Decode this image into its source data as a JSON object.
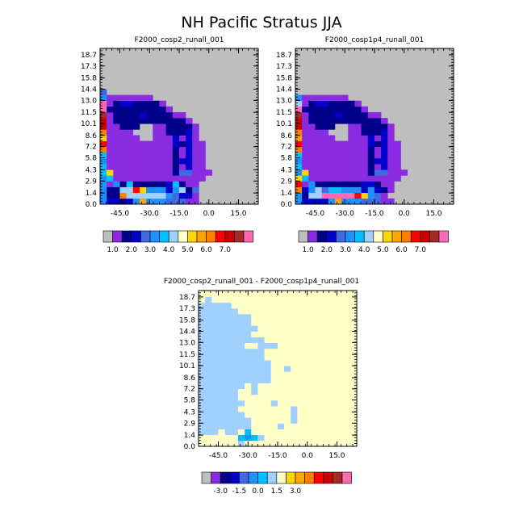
{
  "title": "NH Pacific Stratus JJA",
  "colors": {
    "background": "#ffffff",
    "missing": "#bebebe",
    "frame": "#000000",
    "palette": [
      "#bebebe",
      "#8a2be2",
      "#00008b",
      "#0000cd",
      "#4169e1",
      "#1e90ff",
      "#00bfff",
      "#a0d0ff",
      "#ffffc8",
      "#ffd700",
      "#ffa500",
      "#ff7f00",
      "#ff0000",
      "#cd0000",
      "#a52a2a",
      "#ff69b4"
    ]
  },
  "y_tick_labels": [
    "0.0",
    "1.4",
    "2.9",
    "4.3",
    "5.8",
    "7.2",
    "8.6",
    "10.1",
    "11.5",
    "13.0",
    "14.4",
    "15.8",
    "17.3",
    "18.7"
  ],
  "x_tick_labels": [
    "-45.0",
    "-30.0",
    "-15.0",
    "0.0",
    "15.0"
  ],
  "colorbar_top": {
    "labels": [
      "1.0",
      "2.0",
      "3.0",
      "4.0",
      "5.0",
      "6.0",
      "7.0"
    ]
  },
  "colorbar_diff": {
    "labels": [
      "-3.0",
      "-1.5",
      "0.0",
      "1.5",
      "3.0"
    ]
  },
  "chart_data": [
    {
      "type": "heatmap",
      "title": "F2000_cosp2_runall_001",
      "x_ticks": [
        -45,
        -30,
        -15,
        0,
        15
      ],
      "y_ticks": [
        0.0,
        1.4,
        2.9,
        4.3,
        5.8,
        7.2,
        8.6,
        10.1,
        11.5,
        13.0,
        14.4,
        15.8,
        17.3,
        18.7
      ],
      "xlim": [
        -55,
        25
      ],
      "ylim": [
        0,
        19.5
      ],
      "grid": {
        "x0": -55,
        "dx": 3.33,
        "y0": 0,
        "dy": 0.72
      },
      "rows": [
        "FDDCDFKFFFEEEBBAAAAAAAAA",
        "FCCLHHHHHHFEDDBAAAAAAAAA",
        "FCCHHMJFFFDFHCEAAAAAAAAA",
        "FBFCGCCCCCDGCBBAAAAAAAAA",
        "FGBBBBBBBBBBBBBBAAAAAAAA",
        "GJBBBBBBBBBCEEBBBAAAAAAA",
        "GBBBBBBBBBBCBDBBAAAAAAAA",
        "FBBBBBBBBBBCDDBBAAAAAAAA",
        "GBBBBBBBBBBCBDBBAAAAAAAA",
        "LBBBBBBBBBBCBDBBAAAAAAAA",
        "MBBBBBBBBBBDCDBBAAAAAAAA",
        "JBBBBBAABBBDBDBAAAAAAAAA",
        "LBBBBAAABBCCCDBAAAAAAAAA",
        "NBBCCCAABBCCCCBAAAAAAAAA",
        "NBCCCCCCCCCCCBAAAAAAAAAA",
        "OBCCCCDCCCCBBAAAAAAAAAAA",
        "PCCCCCCCCCBAAAAAAAAAAAAA",
        "PBCDDCCCCBAAAAAAAAAAAAAA",
        "FBBBBBBBAAAAAAAAAAAAAAAA",
        "EAAAAAAAAAAAAAAAAAAAAAAA",
        "AAAAAAAAAAAAAAAAAAAAAAAA",
        "AAAAAAAAAAAAAAAAAAAAAAAA",
        "AAAAAAAAAAAAAAAAAAAAAAAA",
        "AAAAAAAAAAAAAAAAAAAAAAAA",
        "AAAAAAAAAAAAAAAAAAAAAAAA",
        "AAAAAAAAAAAAAAAAAAAAAAAA",
        "AAAAAAAAAAAAAAAAAAAAAAAA"
      ]
    },
    {
      "type": "heatmap",
      "title": "F2000_cosp1p4_runall_001",
      "x_ticks": [
        -45,
        -30,
        -15,
        0,
        15
      ],
      "y_ticks": [
        0.0,
        1.4,
        2.9,
        4.3,
        5.8,
        7.2,
        8.6,
        10.1,
        11.5,
        13.0,
        14.4,
        15.8,
        17.3,
        18.7
      ],
      "xlim": [
        -55,
        25
      ],
      "ylim": [
        0,
        19.5
      ],
      "grid": {
        "x0": -55,
        "dx": 3.33,
        "y0": 0,
        "dy": 0.72
      },
      "rows": [
        "FDDDDFKFFFEEEBBAAAAAAAAA",
        "FCHHPPPPPMJFEBAAAAAAAAAA",
        "LDFHEGGFFFDFDCBAAAAAAAAA",
        "MBFCCCCCCCDDCBBAAAAAAAAA",
        "JGBBBBBBBBBBBBBBAAAAAAAA",
        "FJBBBBBBBBBCEEBBBAAAAAAA",
        "GBBBBBBBBBBCBDBBAAAAAAAA",
        "FBBBBBBBBBBCDDBBAAAAAAAA",
        "GBBBBBBBBBBCBDBBAAAAAAAA",
        "LBBBBBBBBBBCBDBBAAAAAAAA",
        "MBBBBBBBBBBDCDBBAAAAAAAA",
        "KBBBBBAABBBDBDBAAAAAAAAA",
        "LBBBBAAABBCCCDBAAAAAAAAA",
        "NBBCCCAABBCCCCBAAAAAAAAA",
        "NBCCCCCCCCCCCBAAAAAAAAAA",
        "OBCCCCDCCCCBBAAAAAAAAAAA",
        "PCCCCCCCCCBAAAAAAAAAAAAA",
        "HBCDDCCCCBAAAAAAAAAAAAAA",
        "FBBBBBBBAAAAAAAAAAAAAAAA",
        "AAAAAAAAAAAAAAAAAAAAAAAA",
        "AAAAAAAAAAAAAAAAAAAAAAAA",
        "AAAAAAAAAAAAAAAAAAAAAAAA",
        "AAAAAAAAAAAAAAAAAAAAAAAA",
        "AAAAAAAAAAAAAAAAAAAAAAAA",
        "AAAAAAAAAAAAAAAAAAAAAAAA",
        "AAAAAAAAAAAAAAAAAAAAAAAA",
        "AAAAAAAAAAAAAAAAAAAAAAAA"
      ]
    },
    {
      "type": "heatmap",
      "title": "F2000_cosp2_runall_001 - F2000_cosp1p4_runall_001",
      "x_ticks": [
        -45,
        -30,
        -15,
        0,
        15
      ],
      "y_ticks": [
        0.0,
        1.4,
        2.9,
        4.3,
        5.8,
        7.2,
        8.6,
        10.1,
        11.5,
        13.0,
        14.4,
        15.8,
        17.3,
        18.7
      ],
      "xlim": [
        -55,
        25
      ],
      "ylim": [
        0,
        19.5
      ],
      "grid": {
        "x0": -55,
        "dx": 3.33,
        "y0": 0,
        "dy": 0.72
      },
      "rows": [
        "IIIIIIHIIIIIIIIIIIIIIIII",
        "IIIIIIGFGHIIIIIIIIIIIIII",
        "HHHIHHIGIIIIIIIIIIIIIIII",
        "HHHHHHHHIIIIHIIIIIIIIIII",
        "HHHHHHHHIIIIIIHIIIIIIIII",
        "HHHHHHHIIIIIIIHIIIIIIIII",
        "HHHHHHIIIIIIIIHIIIIIIIII",
        "HHHHHHHIIIIHIIIIIIIIIIII",
        "HHHHHHIIIIIIIIIIIIIIIIII",
        "HHHHHHIIHIIIIIIIIIIIIIII",
        "HHHHHHHIHIIIIIIIIIIIIIII",
        "HHHHHHHHHHHIIIIIIIIIIIII",
        "HHHHHHHHHHHIIIIIIIIIIIII",
        "HHHHHHHHHHHIIHIIIIIIIIII",
        "HHHHHHHHHHHIIIIIIIIIIIII",
        "HHHHHHHHHHIIIIIIIIIIIIII",
        "HHHHHHHHHHIIIIIIIIIIIIII",
        "HHHHHHHIIHHHIIIIIIIIIIII",
        "HHHHHHHHHHIIIIIIIIIIIIII",
        "HHHHHHHHIIIIIIIIIIIIIIII",
        "HHHHHHHHHIIIIIIIIIIIIIII",
        "HHHHHHHHIIIIIIIIIIIIIIII",
        "HHHHHHHHIIIIIIIIIIIIIIII",
        "HHHHHHIIIIIIIIIIIIIIIIII",
        "HHHHHIIIIIIIIIIIIIIIIIII",
        "IHIIIIIIIIIIIIIIIIIIIIII",
        "IIIIIIIIIIIIIIIIIIIIIIII"
      ]
    }
  ]
}
